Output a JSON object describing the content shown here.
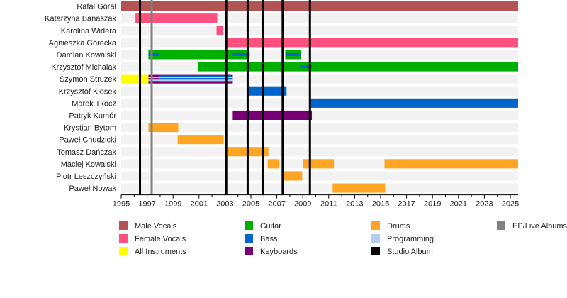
{
  "chart_data": {
    "type": "timeline",
    "xlim": [
      1995,
      2025.6
    ],
    "x_ticks": [
      "1995",
      "1997",
      "1999",
      "2001",
      "2003",
      "2005",
      "2007",
      "2009",
      "2011",
      "2013",
      "2015",
      "2017",
      "2019",
      "2021",
      "2023",
      "2025"
    ],
    "legend": [
      {
        "name": "Male Vocals",
        "color": "#b25454"
      },
      {
        "name": "Female Vocals",
        "color": "#ff5080"
      },
      {
        "name": "All Instruments",
        "color": "#ffff00"
      },
      {
        "name": "Guitar",
        "color": "#00b000"
      },
      {
        "name": "Bass",
        "color": "#0066cc"
      },
      {
        "name": "Keyboards",
        "color": "#770077"
      },
      {
        "name": "Drums",
        "color": "#ffa524"
      },
      {
        "name": "Programming",
        "color": "#b4cdf0"
      },
      {
        "name": "Studio Album",
        "color": "#000000"
      },
      {
        "name": "EP/Live Albums",
        "color": "#808080"
      }
    ],
    "members": [
      {
        "name": "Rafał Góral",
        "bars": [
          {
            "role": "Male Vocals",
            "from": 1995,
            "to": 2025.6
          }
        ]
      },
      {
        "name": "Katarzyna Banaszak",
        "bars": [
          {
            "role": "Female Vocals",
            "from": 1996.1,
            "to": 2002.4
          }
        ]
      },
      {
        "name": "Karolina Widera",
        "bars": [
          {
            "role": "Female Vocals",
            "from": 2002.35,
            "to": 2002.85
          }
        ]
      },
      {
        "name": "Agnieszka Górecka",
        "bars": [
          {
            "role": "Female Vocals",
            "from": 2003.0,
            "to": 2025.6
          }
        ]
      },
      {
        "name": "Damian Kowalski",
        "bars": [
          {
            "role": "Guitar",
            "from": 1997.1,
            "to": 2004.9
          },
          {
            "role": "Guitar",
            "from": 2007.65,
            "to": 2008.85
          }
        ],
        "secondary": [
          {
            "role": "Bass",
            "from": 1997.1,
            "to": 1997.95
          },
          {
            "role": "Bass",
            "from": 2003.6,
            "to": 2004.9
          },
          {
            "role": "Bass",
            "from": 2007.65,
            "to": 2008.85
          }
        ]
      },
      {
        "name": "Krzysztof Michalak",
        "bars": [
          {
            "role": "Guitar",
            "from": 2000.9,
            "to": 2025.6
          }
        ],
        "secondary": [
          {
            "role": "Bass",
            "from": 2008.8,
            "to": 2009.7
          }
        ]
      },
      {
        "name": "Szymon Strużek",
        "bars": [
          {
            "role": "All Instruments",
            "from": 1995,
            "to": 1997.1
          },
          {
            "role": "Keyboards",
            "from": 1997.1,
            "to": 2003.6
          }
        ],
        "edges": [
          {
            "role": "Bass",
            "from": 1997.95,
            "to": 2003.6
          }
        ],
        "secondary": [
          {
            "role": "Programming",
            "from": 1997.1,
            "to": 2003.6
          }
        ]
      },
      {
        "name": "Krzysztof Kłosek",
        "bars": [
          {
            "role": "Bass",
            "from": 2004.8,
            "to": 2007.75
          }
        ]
      },
      {
        "name": "Marek Tkocz",
        "bars": [
          {
            "role": "Bass",
            "from": 2009.6,
            "to": 2025.6
          }
        ]
      },
      {
        "name": "Patryk Kumór",
        "bars": [
          {
            "role": "Keyboards",
            "from": 2003.6,
            "to": 2009.7
          }
        ]
      },
      {
        "name": "Krystian Bytom",
        "bars": [
          {
            "role": "Drums",
            "from": 1997.1,
            "to": 1999.4
          }
        ]
      },
      {
        "name": "Paweł Chudzicki",
        "bars": [
          {
            "role": "Drums",
            "from": 1999.35,
            "to": 2002.9
          }
        ]
      },
      {
        "name": "Tomasz Dańczak",
        "bars": [
          {
            "role": "Drums",
            "from": 2003.2,
            "to": 2006.35
          }
        ]
      },
      {
        "name": "Maciej Kowalski",
        "bars": [
          {
            "role": "Drums",
            "from": 2006.3,
            "to": 2007.2
          },
          {
            "role": "Drums",
            "from": 2009.0,
            "to": 2011.4
          },
          {
            "role": "Drums",
            "from": 2015.3,
            "to": 2025.6
          }
        ]
      },
      {
        "name": "Piotr Leszczyński",
        "bars": [
          {
            "role": "Drums",
            "from": 2007.55,
            "to": 2008.95
          }
        ]
      },
      {
        "name": "Paweł Nowak",
        "bars": [
          {
            "role": "Drums",
            "from": 2011.3,
            "to": 2015.35
          }
        ]
      }
    ],
    "studio_albums": [
      1996.45,
      2003.1,
      2004.75,
      2005.9,
      2007.45,
      2009.55
    ],
    "ep_live_albums": [
      1997.35
    ]
  }
}
